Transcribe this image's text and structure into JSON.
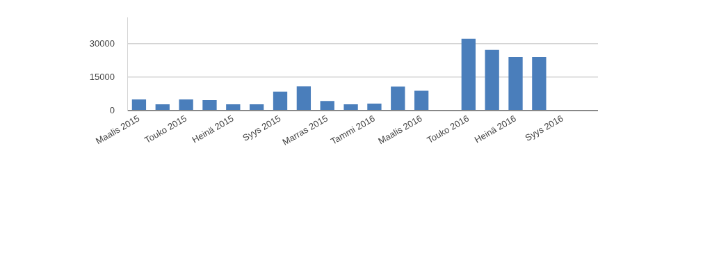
{
  "chart_data": {
    "type": "bar",
    "categories": [
      "Maalis 2015",
      null,
      "Touko 2015",
      null,
      "Heinä 2015",
      null,
      "Syys 2015",
      null,
      "Marras 2015",
      null,
      "Tammi 2016",
      null,
      "Maalis 2016",
      null,
      "Touko 2016",
      null,
      "Heinä 2016",
      null,
      "Syys 2016",
      null
    ],
    "values": [
      5000,
      2800,
      5000,
      4700,
      2800,
      2800,
      8500,
      10900,
      4300,
      2800,
      3100,
      10800,
      8900,
      null,
      32300,
      27300,
      24100,
      24100,
      null,
      null
    ],
    "color": "#4a7ebb",
    "ylim": [
      0,
      41700
    ],
    "yticks": [
      0,
      15000,
      30000
    ],
    "grid": "y"
  }
}
